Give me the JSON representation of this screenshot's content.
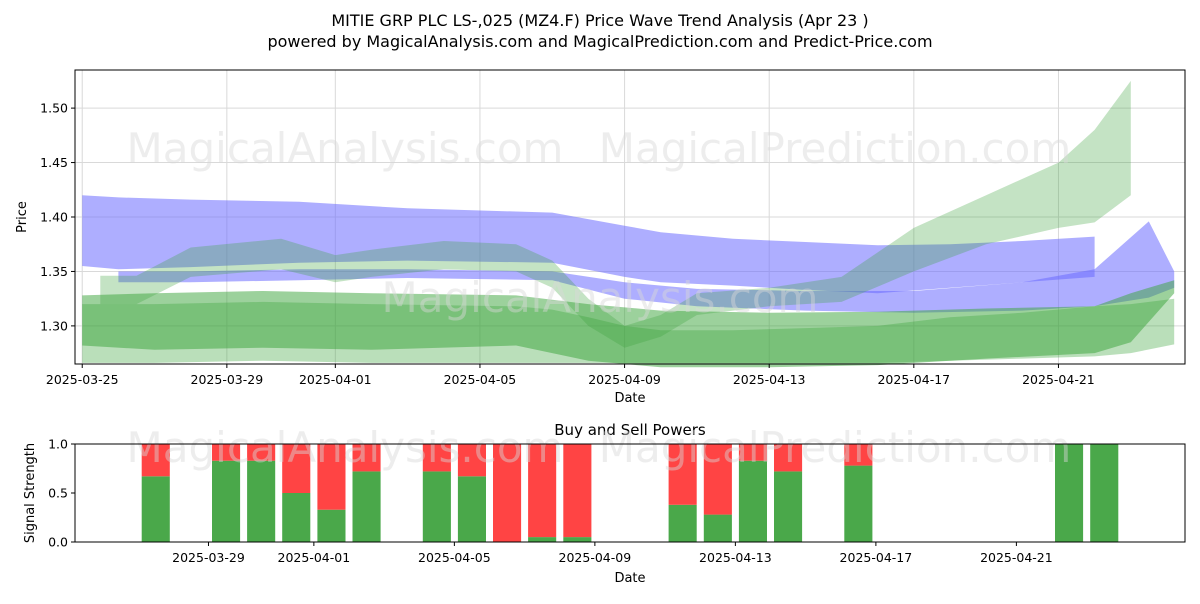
{
  "title": {
    "line1": "MITIE GRP PLC  LS-,025 (MZ4.F) Price Wave Trend Analysis (Apr 23 )",
    "line2": "powered by MagicalAnalysis.com and MagicalPrediction.com and Predict-Price.com"
  },
  "watermarks": {
    "top_left": "MagicalAnalysis.com",
    "top_right": "MagicalPrediction.com",
    "middle": "MagicalAnalysis.com",
    "bottom_left": "MagicalAnalysis.com",
    "bottom_right": "MagicalPrediction.com"
  },
  "colors": {
    "blue_band": "#6b6bff",
    "green_band": "#3aa33a",
    "buy": "#4aa84a",
    "sell": "#ff4444",
    "grid": "#d9d9d9"
  },
  "chart_data": [
    {
      "type": "area",
      "title": "MITIE GRP PLC  LS-,025 (MZ4.F) Price Wave Trend Analysis (Apr 23 )",
      "xlabel": "Date",
      "ylabel": "Price",
      "xlim": [
        -0.2,
        30.5
      ],
      "ylim": [
        1.265,
        1.535
      ],
      "x_ticks": [
        {
          "x": 0,
          "label": "2025-03-25"
        },
        {
          "x": 4,
          "label": "2025-03-29"
        },
        {
          "x": 7,
          "label": "2025-04-01"
        },
        {
          "x": 11,
          "label": "2025-04-05"
        },
        {
          "x": 15,
          "label": "2025-04-09"
        },
        {
          "x": 19,
          "label": "2025-04-13"
        },
        {
          "x": 23,
          "label": "2025-04-17"
        },
        {
          "x": 27,
          "label": "2025-04-21"
        }
      ],
      "y_ticks": [
        1.3,
        1.35,
        1.4,
        1.45,
        1.5
      ],
      "grid": true,
      "series": [
        {
          "name": "blue-wave-upper",
          "color": "#6b6bff",
          "opacity": 0.55,
          "x": [
            0,
            1,
            3,
            6,
            9,
            13,
            15,
            16,
            18,
            20,
            22,
            24,
            26,
            28
          ],
          "upper": [
            1.42,
            1.418,
            1.416,
            1.414,
            1.408,
            1.404,
            1.392,
            1.386,
            1.38,
            1.377,
            1.374,
            1.375,
            1.378,
            1.382
          ],
          "lower": [
            1.355,
            1.352,
            1.354,
            1.358,
            1.36,
            1.358,
            1.345,
            1.34,
            1.337,
            1.333,
            1.33,
            1.335,
            1.34,
            1.345
          ]
        },
        {
          "name": "blue-wave-lower",
          "color": "#6b6bff",
          "opacity": 0.55,
          "x": [
            1,
            3,
            6,
            9,
            13,
            15,
            17,
            20,
            23,
            26,
            28,
            29.5,
            30.2
          ],
          "upper": [
            1.35,
            1.35,
            1.352,
            1.352,
            1.35,
            1.34,
            1.334,
            1.332,
            1.332,
            1.34,
            1.352,
            1.396,
            1.35
          ],
          "lower": [
            1.34,
            1.34,
            1.342,
            1.344,
            1.342,
            1.325,
            1.318,
            1.314,
            1.312,
            1.314,
            1.318,
            1.326,
            1.335
          ]
        },
        {
          "name": "green-base",
          "color": "#3aa33a",
          "opacity": 0.5,
          "x": [
            0,
            2,
            5,
            8,
            12,
            14,
            16,
            19,
            22,
            25,
            28,
            29,
            30.2
          ],
          "upper": [
            1.328,
            1.33,
            1.332,
            1.33,
            1.328,
            1.32,
            1.314,
            1.312,
            1.313,
            1.316,
            1.318,
            1.33,
            1.342
          ],
          "lower": [
            1.282,
            1.278,
            1.28,
            1.278,
            1.282,
            1.268,
            1.262,
            1.262,
            1.264,
            1.27,
            1.275,
            1.285,
            1.33
          ]
        },
        {
          "name": "green-fan",
          "color": "#3aa33a",
          "opacity": 0.35,
          "x": [
            0,
            2,
            5,
            8,
            12,
            13,
            14,
            15,
            16,
            18,
            20,
            22,
            24,
            26,
            28,
            29,
            30.2
          ],
          "upper": [
            1.32,
            1.32,
            1.322,
            1.32,
            1.318,
            1.315,
            1.308,
            1.3,
            1.296,
            1.296,
            1.298,
            1.3,
            1.308,
            1.312,
            1.318,
            1.32,
            1.325
          ],
          "lower": [
            1.266,
            1.266,
            1.268,
            1.266,
            1.266,
            1.266,
            1.266,
            1.266,
            1.266,
            1.266,
            1.266,
            1.266,
            1.268,
            1.27,
            1.272,
            1.275,
            1.283
          ]
        },
        {
          "name": "wave-paths",
          "color": "#3aa33a",
          "opacity": 0.3,
          "x": [
            0.5,
            1.5,
            3,
            5.5,
            7,
            8,
            10,
            12,
            13,
            14,
            15,
            16,
            17,
            19,
            21,
            23,
            25,
            27,
            28,
            29
          ],
          "upper": [
            1.346,
            1.346,
            1.372,
            1.38,
            1.365,
            1.37,
            1.378,
            1.375,
            1.36,
            1.325,
            1.3,
            1.31,
            1.33,
            1.335,
            1.345,
            1.39,
            1.42,
            1.45,
            1.48,
            1.525
          ],
          "lower": [
            1.32,
            1.32,
            1.345,
            1.352,
            1.34,
            1.345,
            1.352,
            1.35,
            1.335,
            1.3,
            1.28,
            1.29,
            1.31,
            1.318,
            1.322,
            1.35,
            1.375,
            1.39,
            1.395,
            1.42
          ]
        }
      ]
    },
    {
      "type": "bar",
      "title": "Buy and Sell Powers",
      "xlabel": "Date",
      "ylabel": "Signal Strength",
      "xlim": [
        -0.8,
        30.8
      ],
      "ylim": [
        0,
        1
      ],
      "y_ticks": [
        0.0,
        0.5,
        1.0
      ],
      "x_ticks": [
        {
          "x": 3,
          "label": "2025-03-29"
        },
        {
          "x": 6,
          "label": "2025-04-01"
        },
        {
          "x": 10,
          "label": "2025-04-05"
        },
        {
          "x": 14,
          "label": "2025-04-09"
        },
        {
          "x": 18,
          "label": "2025-04-13"
        },
        {
          "x": 22,
          "label": "2025-04-17"
        },
        {
          "x": 26,
          "label": "2025-04-21"
        }
      ],
      "x": [
        0.5,
        1.5,
        3.5,
        4.5,
        5.5,
        6.5,
        7.5,
        9.5,
        10.5,
        11.5,
        12.5,
        13.5,
        16.5,
        17.5,
        18.5,
        19.5,
        21.5,
        22.5,
        24.5,
        25.5,
        26.5,
        27.5,
        28.5
      ],
      "series": [
        {
          "name": "Buy",
          "color": "#4aa84a",
          "values": [
            0,
            0.67,
            0.83,
            0.83,
            0.5,
            0.33,
            0.72,
            0.72,
            0.67,
            0,
            0.05,
            0.05,
            0.38,
            0.28,
            0.83,
            0.72,
            0.78,
            0,
            0,
            0,
            0,
            1.0,
            1.0
          ]
        },
        {
          "name": "Sell",
          "color": "#ff4444",
          "values": [
            0,
            0.33,
            0.17,
            0.17,
            0.5,
            0.67,
            0.28,
            0.28,
            0.33,
            1.0,
            0.95,
            0.95,
            0.62,
            0.72,
            0.17,
            0.28,
            0.22,
            0,
            0,
            0,
            0,
            0,
            0
          ]
        }
      ]
    }
  ]
}
